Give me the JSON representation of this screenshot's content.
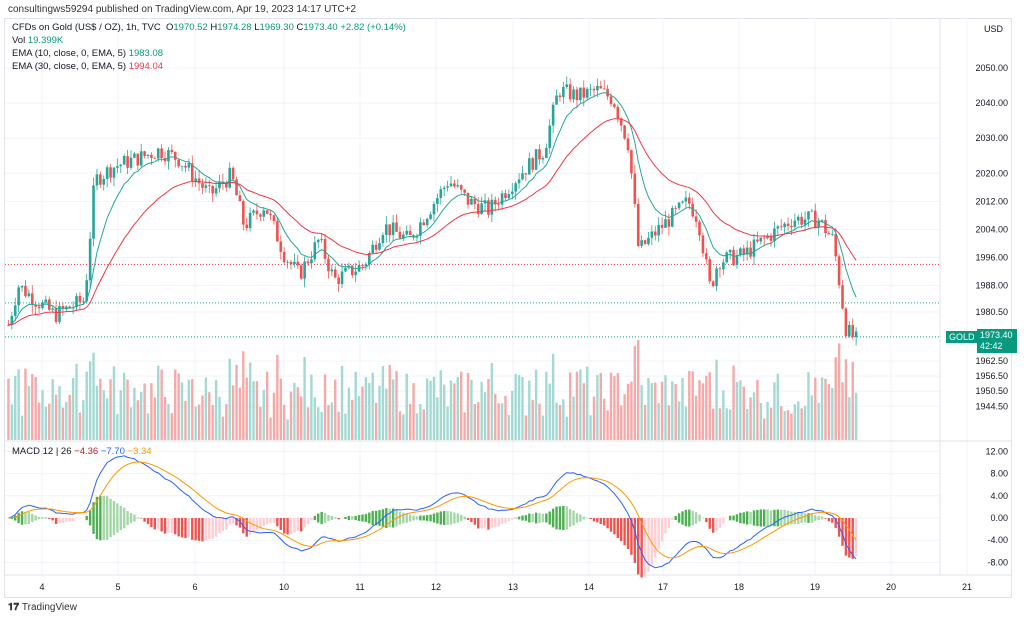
{
  "header": {
    "published": "consultingws59294 published on TradingView.com, Apr 19, 2023 14:17 UTC+2"
  },
  "legend": {
    "symbol": "CFDs on Gold (US$ / OZ), 1h, TVC",
    "o_label": "O",
    "o": "1970.52",
    "h_label": "H",
    "h": "1974.28",
    "l_label": "L",
    "l": "1969.30",
    "c_label": "C",
    "c": "1973.40",
    "change": "+2.82 (+0.14%)",
    "vol_label": "Vol",
    "vol": "19.399K",
    "ema10_label": "EMA (10, close, 0, EMA, 5)",
    "ema10": "1983.08",
    "ema30_label": "EMA (30, close, 0, EMA, 5)",
    "ema30": "1994.04",
    "macd_label": "MACD 12 | 26",
    "macd_hist": "−4.36",
    "macd": "−7.70",
    "macd_signal": "−3.34"
  },
  "price_tag": {
    "symbol": "GOLD",
    "price": "1973.40",
    "countdown": "42:42"
  },
  "axis": {
    "currency": "USD"
  },
  "watermark": "TradingView",
  "colors": {
    "up": "#26a69a",
    "down": "#ef5350",
    "ema10": "#26a69a",
    "ema30": "#f23645",
    "macd": "#2962ff",
    "signal": "#ff9800"
  },
  "chart_data": {
    "type": "candlestick",
    "title": "CFDs on Gold (US$ / OZ), 1h, TVC",
    "ylabel": "USD",
    "ylim": [
      1944.5,
      2055
    ],
    "y_ticks": [
      "2050.00",
      "2040.00",
      "2030.00",
      "2020.00",
      "2012.00",
      "2004.00",
      "1996.00",
      "1988.00",
      "1980.50",
      "1962.50",
      "1956.50",
      "1950.50",
      "1944.50"
    ],
    "x_ticks": [
      "4",
      "5",
      "6",
      "10",
      "11",
      "12",
      "13",
      "14",
      "17",
      "18",
      "19",
      "20",
      "21"
    ],
    "macd_ticks": [
      "12.00",
      "8.00",
      "4.00",
      "0.00",
      "-4.00",
      "-8.00"
    ],
    "macd_ylim": [
      -9.5,
      13
    ],
    "close_path_note": "approximate closes; x in trading days from label 4",
    "close_path": [
      [
        -0.44,
        1976.8
      ],
      [
        -0.31,
        1988
      ],
      [
        -0.09,
        1984
      ],
      [
        0.17,
        1979.6
      ],
      [
        0.56,
        1984
      ],
      [
        0.69,
        2018
      ],
      [
        0.95,
        2022
      ],
      [
        1.35,
        2025
      ],
      [
        1.54,
        2026.6
      ],
      [
        1.8,
        2024
      ],
      [
        2.2,
        2013.8
      ],
      [
        2.48,
        2019.5
      ],
      [
        2.65,
        2005
      ],
      [
        2.92,
        2011
      ],
      [
        3.18,
        1996.7
      ],
      [
        3.37,
        1991
      ],
      [
        3.63,
        2001
      ],
      [
        3.83,
        1989.6
      ],
      [
        4.22,
        1994
      ],
      [
        4.48,
        2005
      ],
      [
        4.81,
        2001
      ],
      [
        5.33,
        2018
      ],
      [
        5.59,
        2012
      ],
      [
        5.86,
        2009.5
      ],
      [
        6.25,
        2019.5
      ],
      [
        6.58,
        2026.6
      ],
      [
        6.77,
        2043.7
      ],
      [
        7.03,
        2042
      ],
      [
        7.29,
        2043.7
      ],
      [
        7.49,
        2041
      ],
      [
        7.69,
        2028
      ],
      [
        7.82,
        1998
      ],
      [
        8.08,
        2004
      ],
      [
        8.47,
        2012
      ],
      [
        8.6,
        2007
      ],
      [
        8.76,
        1986.8
      ],
      [
        8.86,
        1995
      ],
      [
        9.19,
        1996.7
      ],
      [
        9.52,
        2002
      ],
      [
        9.84,
        2007
      ],
      [
        10.17,
        2007
      ],
      [
        10.37,
        2001
      ],
      [
        10.54,
        1975.4
      ],
      [
        10.67,
        1972.5
      ]
    ]
  }
}
